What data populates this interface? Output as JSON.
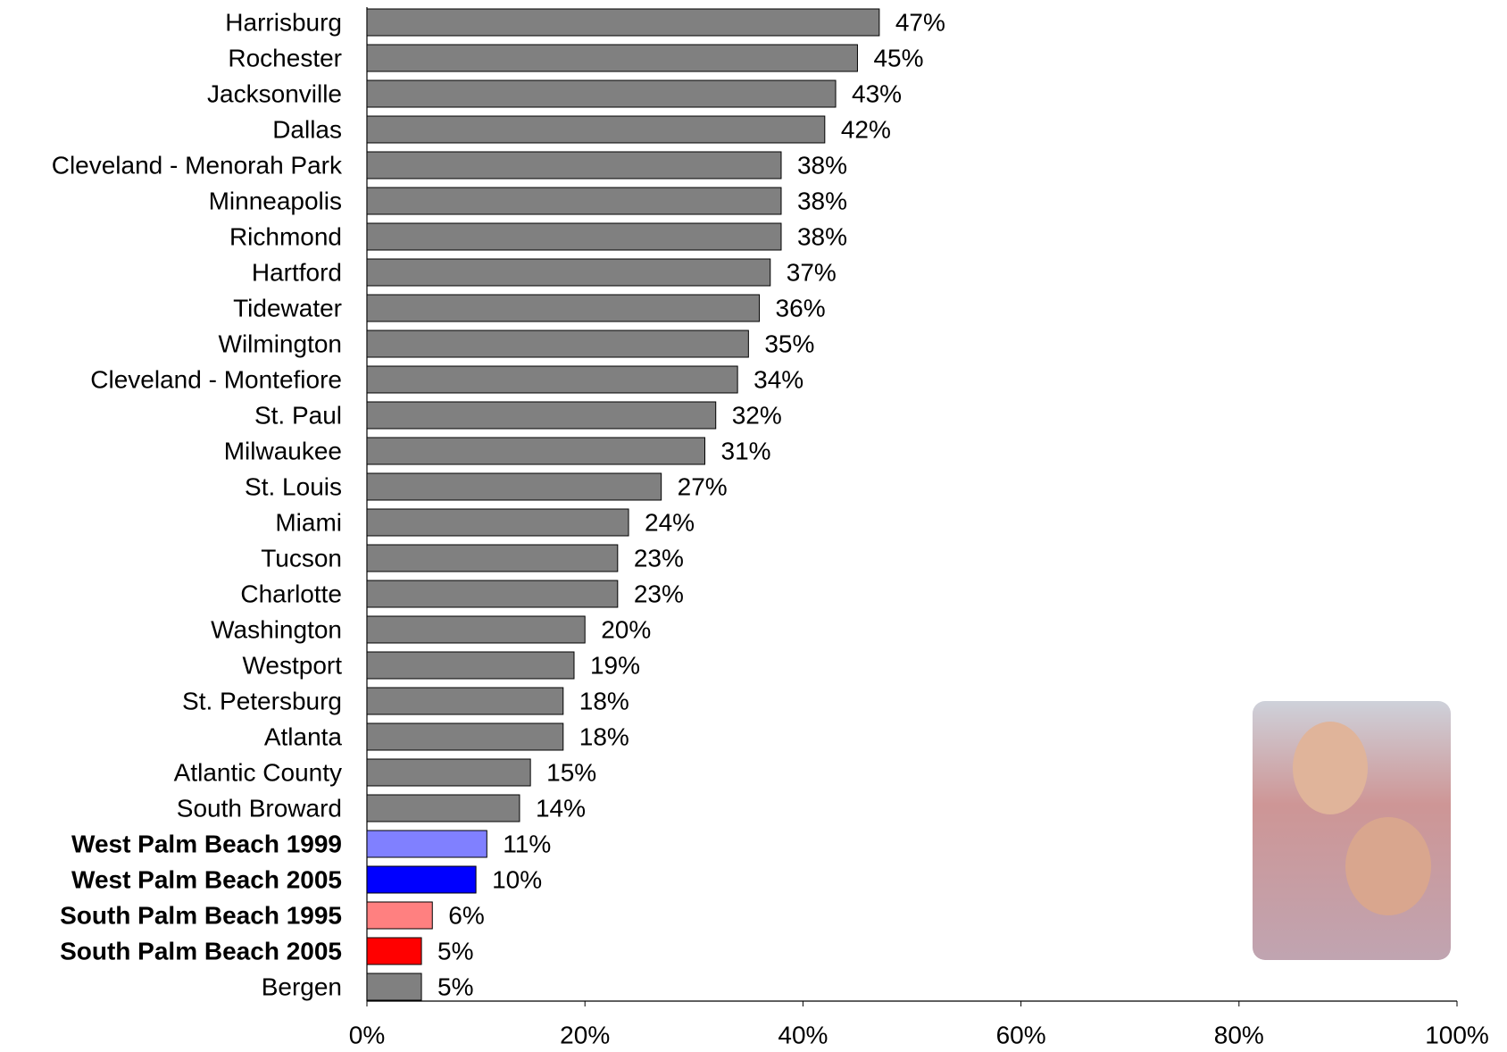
{
  "chart_data": {
    "type": "hbar",
    "categories": [
      "Harrisburg",
      "Rochester",
      "Jacksonville",
      "Dallas",
      "Cleveland - Menorah Park",
      "Minneapolis",
      "Richmond",
      "Hartford",
      "Tidewater",
      "Wilmington",
      "Cleveland - Montefiore",
      "St. Paul",
      "Milwaukee",
      "St. Louis",
      "Miami",
      "Tucson",
      "Charlotte",
      "Washington",
      "Westport",
      "St. Petersburg",
      "Atlanta",
      "Atlantic County",
      "South Broward",
      "West Palm Beach 1999",
      "West Palm Beach 2005",
      "South Palm Beach 1995",
      "South Palm Beach 2005",
      "Bergen"
    ],
    "values": [
      47,
      45,
      43,
      42,
      38,
      38,
      38,
      37,
      36,
      35,
      34,
      32,
      31,
      27,
      24,
      23,
      23,
      20,
      19,
      18,
      18,
      15,
      14,
      11,
      10,
      6,
      5,
      5
    ],
    "value_labels": [
      "47%",
      "45%",
      "43%",
      "42%",
      "38%",
      "38%",
      "38%",
      "37%",
      "36%",
      "35%",
      "34%",
      "32%",
      "31%",
      "27%",
      "24%",
      "23%",
      "23%",
      "20%",
      "19%",
      "18%",
      "18%",
      "15%",
      "14%",
      "11%",
      "10%",
      "6%",
      "5%",
      "5%"
    ],
    "bar_colors": [
      "#808080",
      "#808080",
      "#808080",
      "#808080",
      "#808080",
      "#808080",
      "#808080",
      "#808080",
      "#808080",
      "#808080",
      "#808080",
      "#808080",
      "#808080",
      "#808080",
      "#808080",
      "#808080",
      "#808080",
      "#808080",
      "#808080",
      "#808080",
      "#808080",
      "#808080",
      "#808080",
      "#8080ff",
      "#0000ff",
      "#ff8080",
      "#ff0000",
      "#808080"
    ],
    "label_colors": [
      "#000000",
      "#000000",
      "#000000",
      "#000000",
      "#000000",
      "#000000",
      "#000000",
      "#000000",
      "#000000",
      "#000000",
      "#000000",
      "#000000",
      "#000000",
      "#000000",
      "#ff0000",
      "#000000",
      "#000000",
      "#000000",
      "#000000",
      "#000000",
      "#000000",
      "#000000",
      "#000000",
      "#8080ff",
      "#0000ff",
      "#ff8080",
      "#ff0000",
      "#000000"
    ],
    "bold_labels": [
      false,
      false,
      false,
      false,
      false,
      false,
      false,
      false,
      false,
      false,
      false,
      false,
      false,
      false,
      false,
      false,
      false,
      false,
      false,
      false,
      false,
      false,
      false,
      true,
      true,
      true,
      true,
      false
    ],
    "xlim": [
      0,
      100
    ],
    "xticks": [
      {
        "value": 0,
        "label": "0%"
      },
      {
        "value": 20,
        "label": "20%"
      },
      {
        "value": 40,
        "label": "40%"
      },
      {
        "value": 60,
        "label": "60%"
      },
      {
        "value": 80,
        "label": "80%"
      },
      {
        "value": 100,
        "label": "100%"
      }
    ]
  }
}
